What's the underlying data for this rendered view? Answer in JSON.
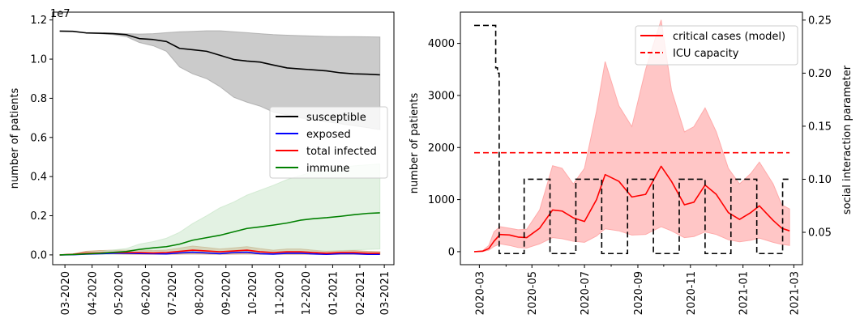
{
  "chart_data": [
    {
      "type": "line",
      "ylabel": "number of patients",
      "y_offset_text": "1e7",
      "ylim": [
        -0.05,
        1.24
      ],
      "xlim": [
        "2020-02-16",
        "2021-03-12"
      ],
      "y_ticks": [
        0.0,
        0.2,
        0.4,
        0.6,
        0.8,
        1.0,
        1.2
      ],
      "y_tick_labels": [
        "0.0",
        "0.2",
        "0.4",
        "0.6",
        "0.8",
        "1.0",
        "1.2"
      ],
      "x_ticks": [
        "2020-03-01",
        "2020-04-01",
        "2020-05-01",
        "2020-06-01",
        "2020-07-01",
        "2020-08-01",
        "2020-09-01",
        "2020-10-01",
        "2020-11-01",
        "2020-12-01",
        "2021-01-01",
        "2021-02-01",
        "2021-03-01"
      ],
      "x_tick_labels": [
        "03-2020",
        "04-2020",
        "05-2020",
        "06-2020",
        "07-2020",
        "08-2020",
        "09-2020",
        "10-2020",
        "11-2020",
        "12-2020",
        "01-2021",
        "02-2021",
        "03-2021"
      ],
      "grid": false,
      "legend_position": "center-right",
      "x": [
        "2020-02-24",
        "2020-03-10",
        "2020-03-25",
        "2020-04-10",
        "2020-04-25",
        "2020-05-10",
        "2020-05-25",
        "2020-06-10",
        "2020-06-25",
        "2020-07-10",
        "2020-07-25",
        "2020-08-10",
        "2020-08-25",
        "2020-09-10",
        "2020-09-25",
        "2020-10-10",
        "2020-10-25",
        "2020-11-10",
        "2020-11-25",
        "2020-12-10",
        "2020-12-25",
        "2021-01-10",
        "2021-01-25",
        "2021-02-10",
        "2021-02-24"
      ],
      "series": [
        {
          "name": "susceptible",
          "color": "#000000",
          "values": [
            1.143,
            1.142,
            1.134,
            1.132,
            1.13,
            1.125,
            1.105,
            1.1,
            1.09,
            1.055,
            1.048,
            1.04,
            1.02,
            0.998,
            0.99,
            0.985,
            0.97,
            0.955,
            0.95,
            0.945,
            0.94,
            0.93,
            0.925,
            0.923,
            0.92
          ],
          "band_lower": [
            1.143,
            1.142,
            1.134,
            1.13,
            1.125,
            1.115,
            1.085,
            1.068,
            1.04,
            0.96,
            0.925,
            0.9,
            0.86,
            0.805,
            0.78,
            0.76,
            0.73,
            0.715,
            0.7,
            0.69,
            0.68,
            0.67,
            0.66,
            0.65,
            0.64
          ],
          "band_upper": [
            1.143,
            1.142,
            1.135,
            1.135,
            1.133,
            1.13,
            1.128,
            1.13,
            1.135,
            1.14,
            1.142,
            1.145,
            1.145,
            1.14,
            1.135,
            1.13,
            1.125,
            1.122,
            1.12,
            1.118,
            1.116,
            1.115,
            1.115,
            1.114,
            1.113
          ],
          "band_color": "#a0a0a0"
        },
        {
          "name": "exposed",
          "color": "#0000ff",
          "values": [
            0.0,
            0.001,
            0.004,
            0.006,
            0.008,
            0.008,
            0.007,
            0.006,
            0.005,
            0.01,
            0.014,
            0.01,
            0.006,
            0.012,
            0.014,
            0.006,
            0.004,
            0.008,
            0.008,
            0.005,
            0.003,
            0.006,
            0.006,
            0.003,
            0.003
          ]
        },
        {
          "name": "total infected",
          "color": "#ff0000",
          "values": [
            0.0,
            0.003,
            0.008,
            0.01,
            0.012,
            0.012,
            0.012,
            0.01,
            0.012,
            0.018,
            0.024,
            0.02,
            0.016,
            0.02,
            0.024,
            0.016,
            0.012,
            0.016,
            0.016,
            0.012,
            0.008,
            0.012,
            0.012,
            0.008,
            0.008
          ],
          "band_lower": [
            0.0,
            0.001,
            0.004,
            0.004,
            0.004,
            0.003,
            0.003,
            0.003,
            0.003,
            0.004,
            0.005,
            0.004,
            0.003,
            0.004,
            0.005,
            0.003,
            0.003,
            0.003,
            0.003,
            0.003,
            0.002,
            0.003,
            0.003,
            0.002,
            0.002
          ],
          "band_upper": [
            0.0,
            0.005,
            0.018,
            0.022,
            0.024,
            0.024,
            0.025,
            0.022,
            0.025,
            0.035,
            0.045,
            0.038,
            0.03,
            0.036,
            0.042,
            0.032,
            0.024,
            0.03,
            0.03,
            0.024,
            0.018,
            0.022,
            0.022,
            0.018,
            0.016
          ],
          "band_color": "#c98a5a"
        },
        {
          "name": "immune",
          "color": "#008000",
          "values": [
            0.0,
            0.002,
            0.005,
            0.008,
            0.013,
            0.017,
            0.028,
            0.036,
            0.042,
            0.055,
            0.075,
            0.088,
            0.1,
            0.118,
            0.135,
            0.143,
            0.152,
            0.163,
            0.177,
            0.185,
            0.19,
            0.197,
            0.205,
            0.212,
            0.215
          ],
          "band_lower": [
            0.0,
            0.001,
            0.002,
            0.003,
            0.004,
            0.005,
            0.006,
            0.007,
            0.008,
            0.009,
            0.01,
            0.011,
            0.012,
            0.013,
            0.014,
            0.015,
            0.016,
            0.017,
            0.018,
            0.019,
            0.02,
            0.022,
            0.025,
            0.028,
            0.03
          ],
          "band_upper": [
            0.0,
            0.004,
            0.012,
            0.018,
            0.025,
            0.032,
            0.055,
            0.068,
            0.085,
            0.115,
            0.16,
            0.2,
            0.24,
            0.27,
            0.305,
            0.33,
            0.355,
            0.385,
            0.405,
            0.425,
            0.435,
            0.445,
            0.455,
            0.46,
            0.465
          ],
          "band_color": "#c8e6c8"
        }
      ]
    },
    {
      "type": "line",
      "ylabel": "number of patients",
      "y2label": "social interaction parameter",
      "ylim": [
        -250,
        4600
      ],
      "y2lim": [
        0.0195,
        0.2575
      ],
      "xlim": [
        "2020-02-08",
        "2021-03-11"
      ],
      "y_ticks": [
        0,
        1000,
        2000,
        3000,
        4000
      ],
      "y_tick_labels": [
        "0",
        "1000",
        "2000",
        "3000",
        "4000"
      ],
      "y2_ticks": [
        0.05,
        0.1,
        0.15,
        0.2,
        0.25
      ],
      "y2_tick_labels": [
        "0.05",
        "0.10",
        "0.15",
        "0.20",
        "0.25"
      ],
      "x_ticks": [
        "2020-03-01",
        "2020-05-01",
        "2020-07-01",
        "2020-09-01",
        "2020-11-01",
        "2021-01-01",
        "2021-03-01"
      ],
      "x_tick_labels": [
        "2020-03",
        "2020-05",
        "2020-07",
        "2020-09",
        "2020-11",
        "2021-01",
        "2021-03"
      ],
      "x_minor_ticks": [
        "2020-04-01",
        "2020-06-01",
        "2020-08-01",
        "2020-10-01",
        "2020-12-01",
        "2021-02-01"
      ],
      "grid": false,
      "legend_position": "top-right",
      "critical": {
        "name": "critical cases (model)",
        "color": "#ff0000",
        "x": [
          "2020-02-24",
          "2020-03-05",
          "2020-03-12",
          "2020-03-18",
          "2020-03-25",
          "2020-04-05",
          "2020-04-15",
          "2020-04-25",
          "2020-05-10",
          "2020-05-25",
          "2020-06-05",
          "2020-06-18",
          "2020-07-01",
          "2020-07-15",
          "2020-07-25",
          "2020-08-10",
          "2020-08-25",
          "2020-09-10",
          "2020-09-28",
          "2020-10-10",
          "2020-10-25",
          "2020-11-05",
          "2020-11-18",
          "2020-12-01",
          "2020-12-15",
          "2020-12-28",
          "2021-01-10",
          "2021-01-20",
          "2021-02-05",
          "2021-02-15",
          "2021-02-24"
        ],
        "values": [
          0,
          10,
          60,
          200,
          330,
          320,
          280,
          270,
          450,
          800,
          780,
          650,
          580,
          1000,
          1480,
          1350,
          1050,
          1100,
          1640,
          1350,
          900,
          950,
          1280,
          1100,
          750,
          620,
          750,
          880,
          600,
          450,
          400
        ],
        "band_lower": [
          0,
          5,
          30,
          100,
          150,
          120,
          80,
          70,
          150,
          270,
          250,
          200,
          180,
          300,
          440,
          400,
          320,
          330,
          480,
          400,
          270,
          290,
          380,
          330,
          230,
          190,
          220,
          260,
          180,
          140,
          120
        ],
        "band_upper": [
          0,
          20,
          120,
          380,
          480,
          450,
          420,
          430,
          800,
          1650,
          1600,
          1300,
          1600,
          2700,
          3650,
          2800,
          2400,
          3500,
          4450,
          3100,
          2300,
          2400,
          2760,
          2300,
          1600,
          1300,
          1500,
          1720,
          1300,
          900,
          820
        ],
        "band_color": "#ffc6c6"
      },
      "icu_capacity": {
        "name": "ICU capacity",
        "color": "#ff0000",
        "x": [
          "2020-02-24",
          "2021-02-24"
        ],
        "values": [
          1900,
          1900
        ]
      },
      "social_interaction": {
        "color": "#000000",
        "x": [
          "2020-02-24",
          "2020-03-20",
          "2020-03-20",
          "2020-03-22",
          "2020-03-22",
          "2020-03-24",
          "2020-03-24",
          "2020-04-22",
          "2020-04-22",
          "2020-05-22",
          "2020-05-22",
          "2020-06-21",
          "2020-06-21",
          "2020-07-21",
          "2020-07-21",
          "2020-08-20",
          "2020-08-20",
          "2020-09-19",
          "2020-09-19",
          "2020-10-19",
          "2020-10-19",
          "2020-11-18",
          "2020-11-18",
          "2020-12-18",
          "2020-12-18",
          "2021-01-17",
          "2021-01-17",
          "2021-02-16",
          "2021-02-16",
          "2021-02-24"
        ],
        "values": [
          0.245,
          0.245,
          0.205,
          0.205,
          0.2,
          0.2,
          0.03,
          0.03,
          0.1,
          0.1,
          0.03,
          0.03,
          0.1,
          0.1,
          0.03,
          0.03,
          0.1,
          0.1,
          0.03,
          0.03,
          0.1,
          0.1,
          0.03,
          0.03,
          0.1,
          0.1,
          0.03,
          0.03,
          0.1,
          0.1
        ]
      }
    }
  ]
}
